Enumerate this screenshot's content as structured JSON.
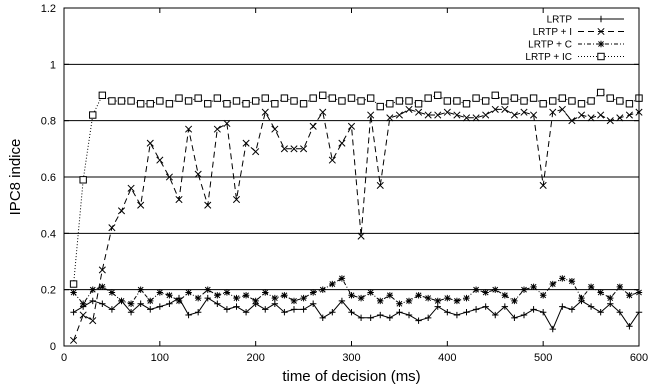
{
  "chart_data": {
    "type": "line",
    "xlabel": "time of decision (ms)",
    "ylabel": "IPC8 indice",
    "xlim": [
      0,
      600
    ],
    "ylim": [
      0,
      1.2
    ],
    "xticks": [
      "0",
      "100",
      "200",
      "300",
      "400",
      "500",
      "600"
    ],
    "yticks": [
      "0",
      "0.2",
      "0.4",
      "0.6",
      "0.8",
      "1",
      "1.2"
    ],
    "ygrid": [
      0.2,
      0.4,
      0.6,
      0.8,
      1.0
    ],
    "legend_position": "top-right",
    "x": [
      10,
      20,
      30,
      40,
      50,
      60,
      70,
      80,
      90,
      100,
      110,
      120,
      130,
      140,
      150,
      160,
      170,
      180,
      190,
      200,
      210,
      220,
      230,
      240,
      250,
      260,
      270,
      280,
      290,
      300,
      310,
      320,
      330,
      340,
      350,
      360,
      370,
      380,
      390,
      400,
      410,
      420,
      430,
      440,
      450,
      460,
      470,
      480,
      490,
      500,
      510,
      520,
      530,
      540,
      550,
      560,
      570,
      580,
      590,
      600
    ],
    "series": [
      {
        "name": "LRTP",
        "marker": "plus",
        "dash": "",
        "values": [
          0.12,
          0.14,
          0.16,
          0.15,
          0.13,
          0.16,
          0.12,
          0.15,
          0.13,
          0.14,
          0.15,
          0.17,
          0.11,
          0.12,
          0.17,
          0.15,
          0.13,
          0.14,
          0.12,
          0.15,
          0.13,
          0.15,
          0.12,
          0.13,
          0.13,
          0.15,
          0.1,
          0.12,
          0.16,
          0.12,
          0.1,
          0.1,
          0.11,
          0.1,
          0.12,
          0.11,
          0.09,
          0.1,
          0.14,
          0.12,
          0.11,
          0.12,
          0.13,
          0.14,
          0.11,
          0.14,
          0.1,
          0.11,
          0.13,
          0.12,
          0.06,
          0.14,
          0.13,
          0.16,
          0.14,
          0.12,
          0.15,
          0.12,
          0.07,
          0.12
        ]
      },
      {
        "name": "LRTP + I",
        "marker": "x",
        "dash": "6,4",
        "values": [
          0.02,
          0.11,
          0.09,
          0.27,
          0.42,
          0.48,
          0.56,
          0.5,
          0.72,
          0.66,
          0.6,
          0.52,
          0.77,
          0.61,
          0.5,
          0.77,
          0.79,
          0.52,
          0.72,
          0.69,
          0.83,
          0.77,
          0.7,
          0.7,
          0.7,
          0.78,
          0.83,
          0.66,
          0.72,
          0.78,
          0.39,
          0.82,
          0.57,
          0.81,
          0.82,
          0.84,
          0.83,
          0.82,
          0.82,
          0.83,
          0.82,
          0.81,
          0.81,
          0.82,
          0.84,
          0.84,
          0.82,
          0.83,
          0.82,
          0.57,
          0.83,
          0.84,
          0.8,
          0.82,
          0.81,
          0.82,
          0.8,
          0.81,
          0.82,
          0.83
        ]
      },
      {
        "name": "LRTP + C",
        "marker": "star",
        "dash": "4,2,1,2",
        "values": [
          0.19,
          0.15,
          0.2,
          0.21,
          0.19,
          0.16,
          0.15,
          0.2,
          0.16,
          0.19,
          0.18,
          0.16,
          0.19,
          0.17,
          0.2,
          0.18,
          0.19,
          0.17,
          0.18,
          0.16,
          0.19,
          0.17,
          0.18,
          0.16,
          0.17,
          0.19,
          0.2,
          0.22,
          0.24,
          0.18,
          0.17,
          0.19,
          0.16,
          0.18,
          0.15,
          0.16,
          0.18,
          0.17,
          0.16,
          0.17,
          0.16,
          0.17,
          0.2,
          0.19,
          0.2,
          0.18,
          0.16,
          0.2,
          0.21,
          0.18,
          0.22,
          0.24,
          0.23,
          0.17,
          0.21,
          0.19,
          0.17,
          0.21,
          0.18,
          0.19
        ]
      },
      {
        "name": "LRTP + IC",
        "marker": "square",
        "dash": "1,2",
        "values": [
          0.22,
          0.59,
          0.82,
          0.89,
          0.87,
          0.87,
          0.87,
          0.86,
          0.86,
          0.87,
          0.86,
          0.88,
          0.87,
          0.88,
          0.86,
          0.88,
          0.86,
          0.87,
          0.86,
          0.87,
          0.88,
          0.86,
          0.88,
          0.87,
          0.86,
          0.88,
          0.89,
          0.88,
          0.87,
          0.88,
          0.87,
          0.88,
          0.85,
          0.86,
          0.87,
          0.87,
          0.86,
          0.88,
          0.89,
          0.87,
          0.87,
          0.86,
          0.88,
          0.87,
          0.89,
          0.87,
          0.88,
          0.87,
          0.88,
          0.86,
          0.87,
          0.88,
          0.87,
          0.86,
          0.87,
          0.9,
          0.88,
          0.87,
          0.86,
          0.88
        ]
      }
    ]
  }
}
